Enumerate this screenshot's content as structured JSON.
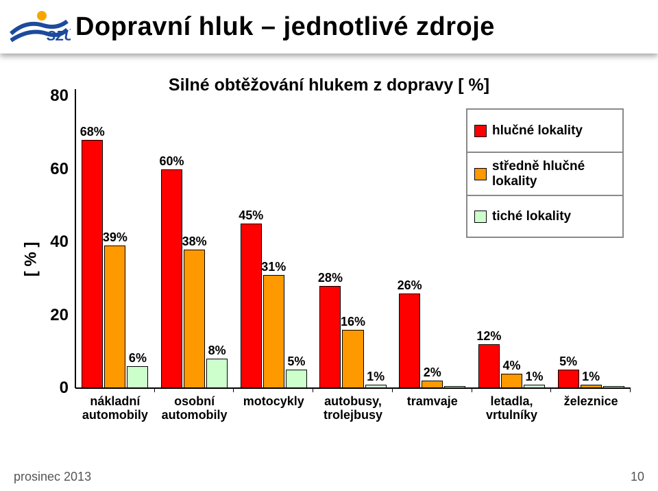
{
  "slide": {
    "title": "Dopravní hluk – jednotlivé zdroje",
    "footer_date": "prosinec 2013",
    "slide_number": "10"
  },
  "chart": {
    "type": "bar",
    "title": "Silné obtěžování hlukem z dopravy [ %]",
    "y_label": "[ % ]",
    "ylim": [
      0,
      80
    ],
    "ytick_step": 20,
    "yticks": [
      0,
      20,
      40,
      60,
      80
    ],
    "background_color": "#ffffff",
    "tick_fontsize": 24,
    "label_fontsize": 18,
    "title_fontsize": 25,
    "categories": [
      "nákladní\nautomobily",
      "osobní\nautomobily",
      "motocykly",
      "autobusy,\ntrolejbusy",
      "tramvaje",
      "letadla,\nvrtulníky",
      "železnice"
    ],
    "series": [
      {
        "name": "hlučné lokality",
        "color": "#ff0000",
        "values": [
          68,
          60,
          45,
          28,
          26,
          12,
          5
        ],
        "labels": [
          "68%",
          "60%",
          "45%",
          "28%",
          "26%",
          "12%",
          "5%"
        ]
      },
      {
        "name": "středně hlučné lokality",
        "color": "#ff9900",
        "values": [
          39,
          38,
          31,
          16,
          2,
          4,
          1
        ],
        "labels": [
          "39%",
          "38%",
          "31%",
          "16%",
          "2%",
          "4%",
          "1%"
        ]
      },
      {
        "name": "tiché lokality",
        "color": "#ccffcc",
        "values": [
          6,
          8,
          5,
          1,
          0.5,
          1,
          0.5
        ],
        "labels": [
          "6%",
          "8%",
          "5%",
          "1%",
          "",
          "1%",
          ""
        ]
      }
    ],
    "bar_border_color": "#000000",
    "grid_color": "#808080"
  },
  "logo": {
    "text": "SZÚ",
    "swoosh_color": "#1d4a9c",
    "accent_color": "#f7a600"
  }
}
